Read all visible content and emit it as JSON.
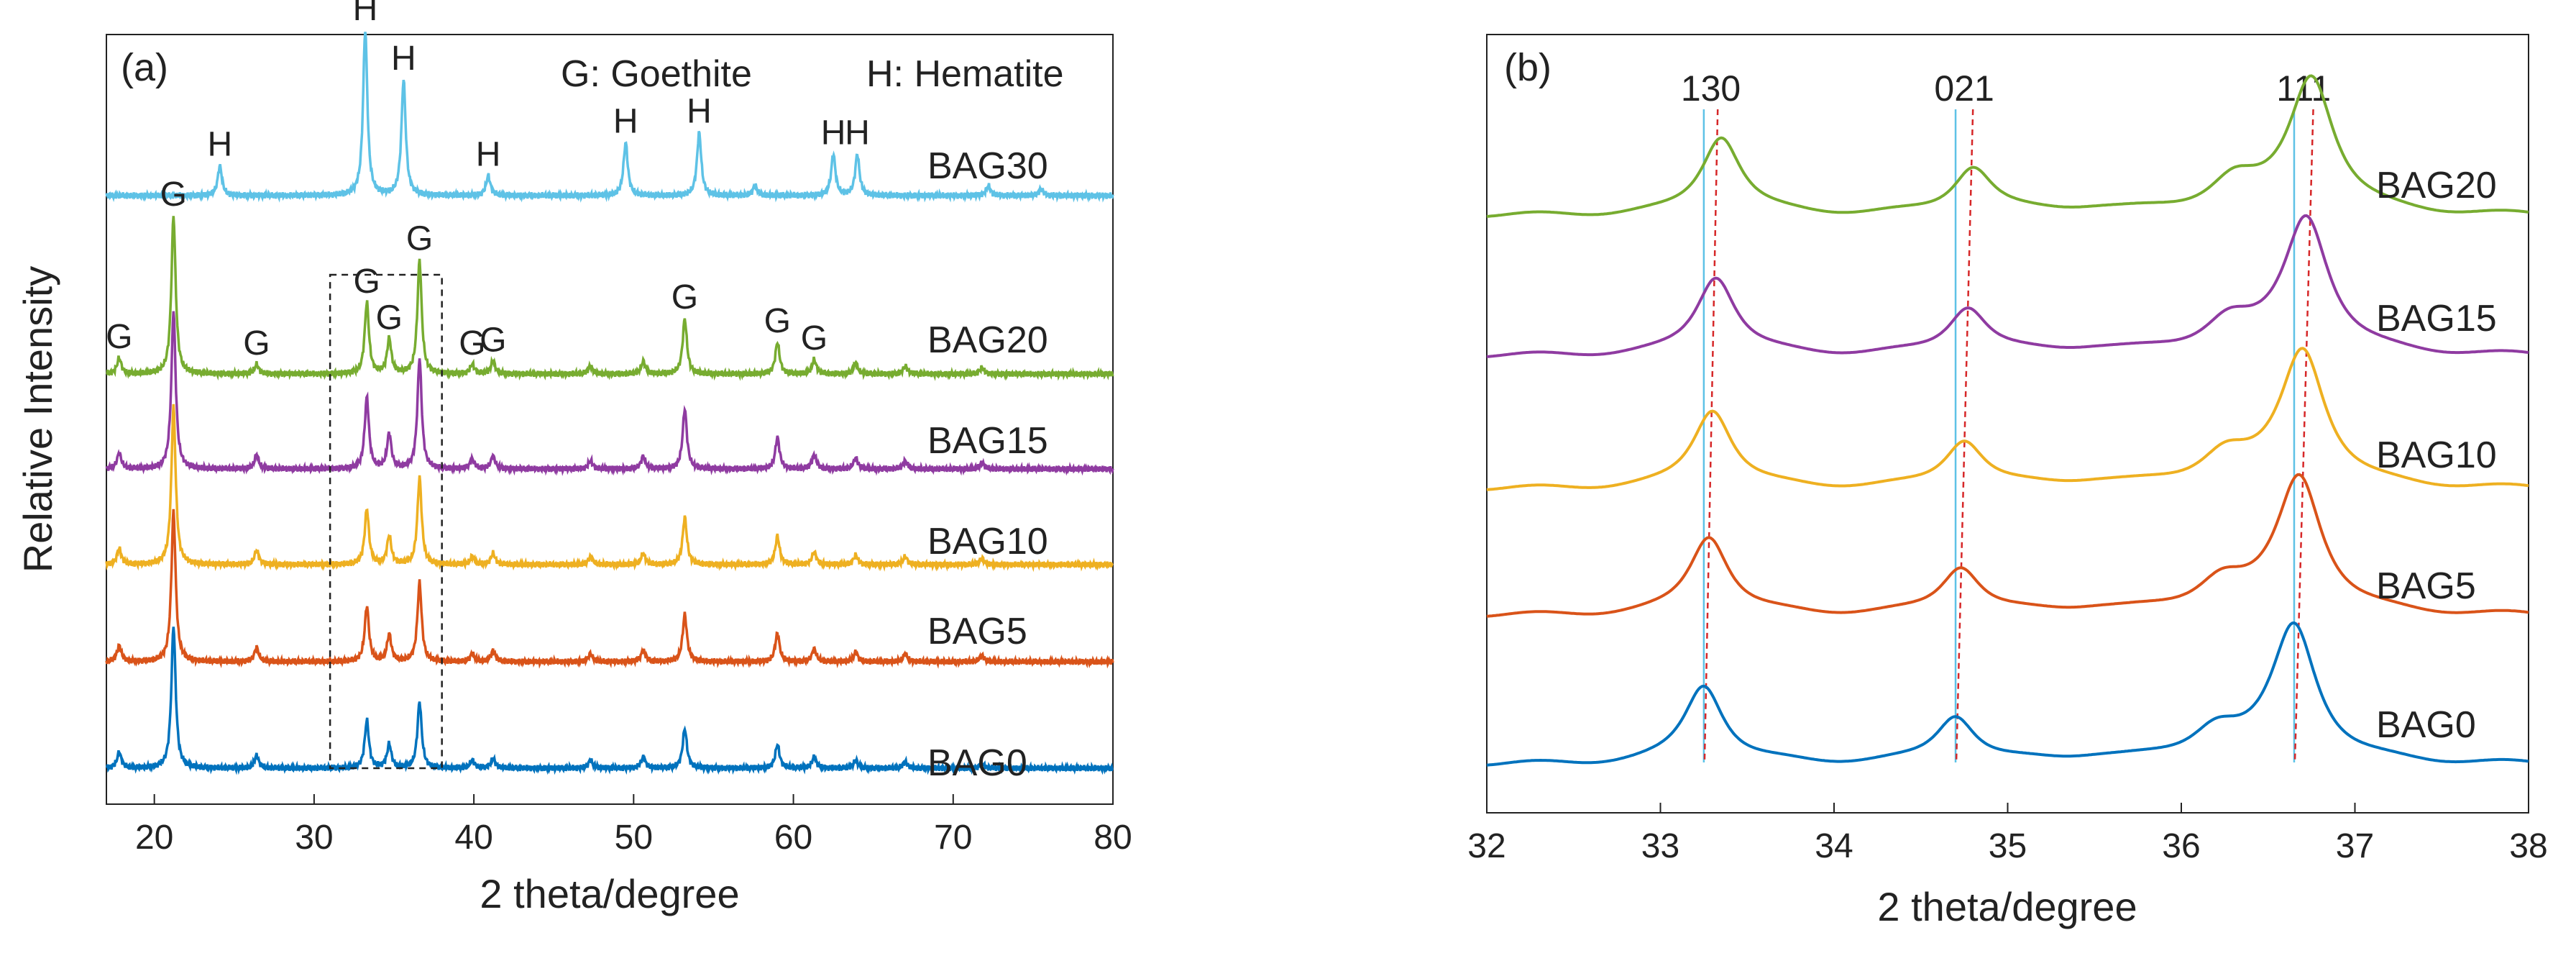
{
  "chart_data": [
    {
      "panel_label": "(a)",
      "type": "line",
      "xlabel": "2 theta/degree",
      "ylabel": "Relative Intensity",
      "xlim": [
        17,
        80
      ],
      "xticks": [
        20,
        30,
        40,
        50,
        60,
        70,
        80
      ],
      "legend_text": [
        "G: Goethite",
        "H: Hematite"
      ],
      "highlight_box_x": [
        31,
        38
      ],
      "series": [
        {
          "name": "BAG30",
          "color": "#5ec2e6",
          "baseline": 0.96,
          "peaks": [
            [
              24.1,
              0.18
            ],
            [
              33.2,
              1.0
            ],
            [
              35.6,
              0.7
            ],
            [
              40.9,
              0.12
            ],
            [
              49.5,
              0.32
            ],
            [
              54.1,
              0.38
            ],
            [
              57.6,
              0.06
            ],
            [
              62.5,
              0.25
            ],
            [
              64.0,
              0.25
            ],
            [
              72.2,
              0.06
            ],
            [
              75.5,
              0.04
            ]
          ]
        },
        {
          "name": "BAG20",
          "color": "#77ac30",
          "baseline": 0.52,
          "peaks": [
            [
              17.8,
              0.1
            ],
            [
              21.2,
              1.0
            ],
            [
              26.4,
              0.06
            ],
            [
              33.3,
              0.45
            ],
            [
              34.7,
              0.22
            ],
            [
              36.6,
              0.72
            ],
            [
              39.9,
              0.06
            ],
            [
              41.2,
              0.08
            ],
            [
              47.3,
              0.05
            ],
            [
              50.6,
              0.08
            ],
            [
              53.2,
              0.35
            ],
            [
              59.0,
              0.2
            ],
            [
              61.3,
              0.09
            ],
            [
              63.9,
              0.07
            ],
            [
              67.0,
              0.05
            ],
            [
              71.8,
              0.04
            ]
          ]
        },
        {
          "name": "BAG15",
          "color": "#8f3ba1",
          "baseline": 0.88,
          "peaks": [
            [
              17.8,
              0.1
            ],
            [
              21.2,
              1.0
            ],
            [
              26.4,
              0.09
            ],
            [
              33.3,
              0.45
            ],
            [
              34.7,
              0.22
            ],
            [
              36.6,
              0.7
            ],
            [
              39.9,
              0.06
            ],
            [
              41.2,
              0.08
            ],
            [
              47.3,
              0.05
            ],
            [
              50.6,
              0.08
            ],
            [
              53.2,
              0.38
            ],
            [
              59.0,
              0.2
            ],
            [
              61.3,
              0.09
            ],
            [
              63.9,
              0.07
            ],
            [
              67.0,
              0.05
            ],
            [
              71.8,
              0.04
            ]
          ]
        },
        {
          "name": "BAG10",
          "color": "#eeb021",
          "baseline": 1.2,
          "peaks": [
            [
              17.8,
              0.1
            ],
            [
              21.2,
              1.0
            ],
            [
              26.4,
              0.09
            ],
            [
              33.3,
              0.35
            ],
            [
              34.7,
              0.18
            ],
            [
              36.6,
              0.55
            ],
            [
              39.9,
              0.05
            ],
            [
              41.2,
              0.07
            ],
            [
              47.3,
              0.05
            ],
            [
              50.6,
              0.07
            ],
            [
              53.2,
              0.3
            ],
            [
              59.0,
              0.18
            ],
            [
              61.3,
              0.08
            ],
            [
              63.9,
              0.06
            ],
            [
              67.0,
              0.05
            ],
            [
              71.8,
              0.04
            ]
          ]
        },
        {
          "name": "BAG5",
          "color": "#d95319",
          "baseline": 1.48,
          "peaks": [
            [
              17.8,
              0.1
            ],
            [
              21.2,
              0.95
            ],
            [
              26.4,
              0.09
            ],
            [
              33.3,
              0.35
            ],
            [
              34.7,
              0.17
            ],
            [
              36.6,
              0.5
            ],
            [
              39.9,
              0.05
            ],
            [
              41.2,
              0.07
            ],
            [
              47.3,
              0.05
            ],
            [
              50.6,
              0.07
            ],
            [
              53.2,
              0.3
            ],
            [
              59.0,
              0.18
            ],
            [
              61.3,
              0.08
            ],
            [
              63.9,
              0.06
            ],
            [
              67.0,
              0.05
            ],
            [
              71.8,
              0.04
            ]
          ]
        },
        {
          "name": "BAG0",
          "color": "#0072bd",
          "baseline": 1.9,
          "peaks": [
            [
              17.8,
              0.1
            ],
            [
              21.2,
              0.9
            ],
            [
              26.4,
              0.08
            ],
            [
              33.3,
              0.3
            ],
            [
              34.7,
              0.15
            ],
            [
              36.6,
              0.42
            ],
            [
              39.9,
              0.05
            ],
            [
              41.2,
              0.06
            ],
            [
              47.3,
              0.05
            ],
            [
              50.6,
              0.07
            ],
            [
              53.2,
              0.25
            ],
            [
              59.0,
              0.15
            ],
            [
              61.3,
              0.07
            ],
            [
              63.9,
              0.05
            ],
            [
              67.0,
              0.04
            ],
            [
              71.8,
              0.03
            ]
          ]
        }
      ],
      "annotations": [
        {
          "text": "H",
          "x": 24.1,
          "series": "BAG30"
        },
        {
          "text": "H",
          "x": 33.2,
          "series": "BAG30"
        },
        {
          "text": "H",
          "x": 35.6,
          "series": "BAG30"
        },
        {
          "text": "H",
          "x": 40.9,
          "series": "BAG30"
        },
        {
          "text": "H",
          "x": 49.5,
          "series": "BAG30"
        },
        {
          "text": "H",
          "x": 54.1,
          "series": "BAG30"
        },
        {
          "text": "H",
          "x": 62.5,
          "series": "BAG30"
        },
        {
          "text": "H",
          "x": 64.0,
          "series": "BAG30"
        },
        {
          "text": "G",
          "x": 17.8,
          "series": "BAG20"
        },
        {
          "text": "G",
          "x": 21.2,
          "series": "BAG20"
        },
        {
          "text": "G",
          "x": 26.4,
          "series": "BAG20"
        },
        {
          "text": "G",
          "x": 33.3,
          "series": "BAG20"
        },
        {
          "text": "G",
          "x": 34.7,
          "series": "BAG20"
        },
        {
          "text": "G",
          "x": 36.6,
          "series": "BAG20"
        },
        {
          "text": "G",
          "x": 39.9,
          "series": "BAG20"
        },
        {
          "text": "G",
          "x": 41.2,
          "series": "BAG20"
        },
        {
          "text": "G",
          "x": 53.2,
          "series": "BAG20"
        },
        {
          "text": "G",
          "x": 59.0,
          "series": "BAG20"
        },
        {
          "text": "G",
          "x": 61.3,
          "series": "BAG20"
        }
      ]
    },
    {
      "panel_label": "(b)",
      "type": "line",
      "xlabel": "2 theta/degree",
      "xlim": [
        32,
        38
      ],
      "xticks": [
        32,
        33,
        34,
        35,
        36,
        37,
        38
      ],
      "reflections": [
        {
          "label": "130",
          "reference_x": 33.25,
          "shifted_x": 33.33
        },
        {
          "label": "021",
          "reference_x": 34.7,
          "shifted_x": 34.8
        },
        {
          "label": "111",
          "reference_x": 36.65,
          "shifted_x": 36.76
        }
      ],
      "series": [
        {
          "name": "BAG20",
          "color": "#77ac30",
          "shift": 0.1
        },
        {
          "name": "BAG15",
          "color": "#8f3ba1",
          "shift": 0.07
        },
        {
          "name": "BAG10",
          "color": "#eeb021",
          "shift": 0.05
        },
        {
          "name": "BAG5",
          "color": "#d95319",
          "shift": 0.03
        },
        {
          "name": "BAG0",
          "color": "#0072bd",
          "shift": 0.0
        }
      ]
    }
  ]
}
